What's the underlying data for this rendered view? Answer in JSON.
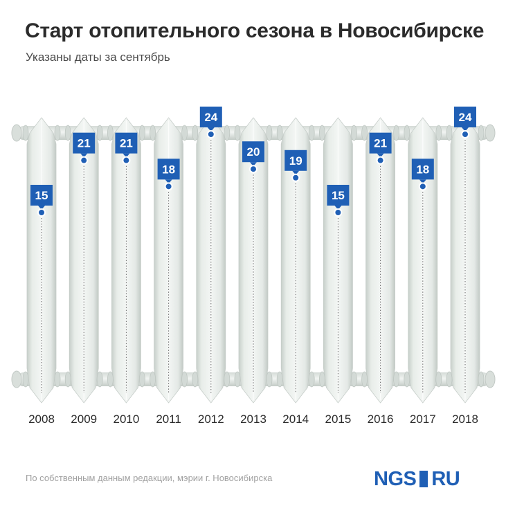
{
  "title": "Старт отопительного сезона в Новосибирске",
  "subtitle": "Указаны даты за сентябрь",
  "footer": {
    "source": "По собственным данным редакции, мэрии г. Новосибирска",
    "logo_left": "NGS",
    "logo_right": "RU"
  },
  "colors": {
    "label_bg": "#1f5fb5",
    "fin_light": "#edf1ee",
    "fin_mid": "#dde3df",
    "fin_dark": "#c9d0cc",
    "text_dark": "#2b2b2b"
  },
  "chart_data": {
    "type": "bar",
    "categories": [
      "2008",
      "2009",
      "2010",
      "2011",
      "2012",
      "2013",
      "2014",
      "2015",
      "2016",
      "2017",
      "2018"
    ],
    "values": [
      15,
      21,
      21,
      18,
      24,
      20,
      19,
      15,
      21,
      18,
      24
    ],
    "xlabel": "",
    "ylabel": "",
    "ylim": [
      0,
      25
    ],
    "grid": false,
    "legend": "none"
  }
}
